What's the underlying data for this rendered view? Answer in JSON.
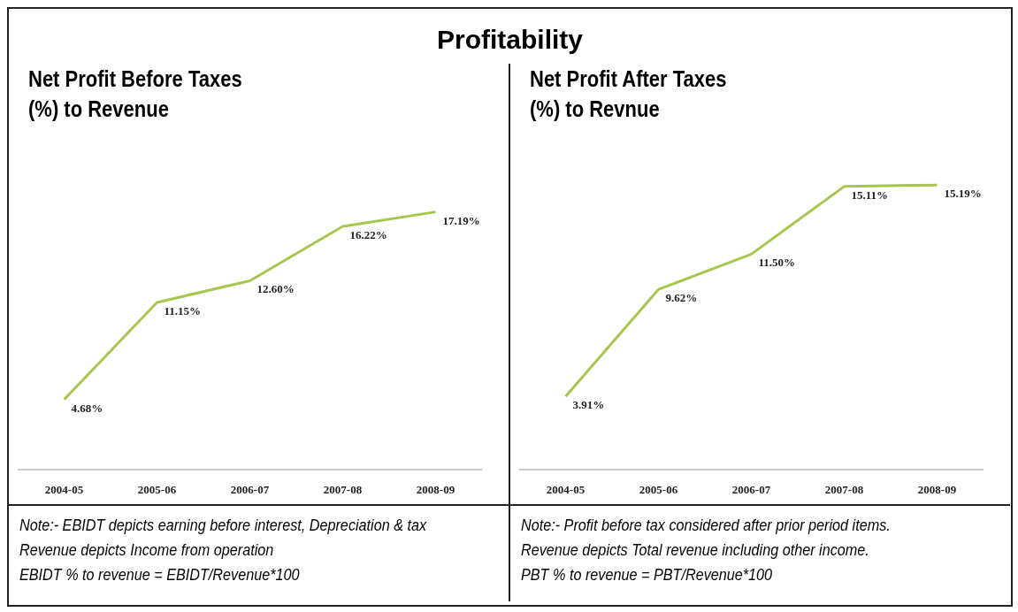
{
  "chart_data": [
    {
      "type": "line",
      "title": "Profitability",
      "subtitle": "Net Profit Before Taxes\n(%) to Revenue",
      "categories": [
        "2004-05",
        "2005-06",
        "2006-07",
        "2007-08",
        "2008-09"
      ],
      "series": [
        {
          "color": "#a8c64e",
          "values": [
            4.68,
            11.15,
            12.6,
            16.22,
            17.19
          ],
          "value_labels": [
            "4.68%",
            "11.15%",
            "12.60%",
            "16.22%",
            "17.19%"
          ]
        }
      ],
      "annotations": [
        "Note:- EBIDT depicts earning before interest, Depreciation & tax",
        "Revenue depicts Income from operation",
        "EBIDT % to revenue = EBIDT/Revenue*100"
      ],
      "grid": false,
      "legend": false,
      "marker": "none",
      "tick_labels": "x"
    },
    {
      "type": "line",
      "subtitle": "Net Profit After Taxes\n(%) to Revnue",
      "categories": [
        "2004-05",
        "2005-06",
        "2006-07",
        "2007-08",
        "2008-09"
      ],
      "series": [
        {
          "color": "#a8c64e",
          "values": [
            3.91,
            9.62,
            11.5,
            15.11,
            15.19
          ],
          "value_labels": [
            "3.91%",
            "9.62%",
            "11.50%",
            "15.11%",
            "15.19%"
          ]
        }
      ],
      "annotations": [
        "Note:- Profit before tax considered after prior period items.",
        "Revenue depicts Total revenue including other income.",
        "PBT % to revenue = PBT/Revenue*100"
      ],
      "grid": false,
      "legend": false,
      "marker": "none",
      "tick_labels": "x"
    }
  ]
}
